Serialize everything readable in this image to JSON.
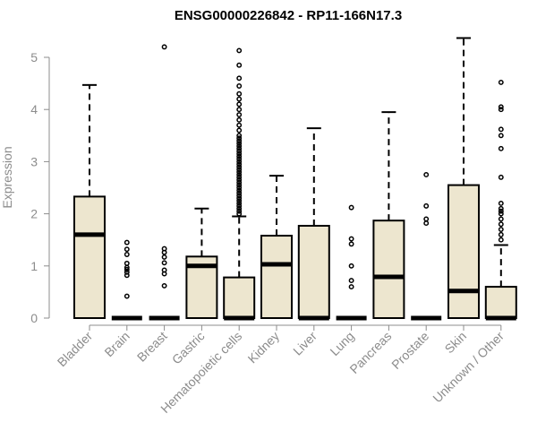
{
  "chart_data": {
    "type": "box",
    "title": "ENSG00000226842 - RP11-166N17.3",
    "ylabel": "Expression",
    "xlabel": "",
    "ylim": [
      0,
      5.5
    ],
    "yticks": [
      0,
      1,
      2,
      3,
      4,
      5
    ],
    "grid": false,
    "box_fill": "#ede6cf",
    "outline_color": "#000000",
    "categories": [
      "Bladder",
      "Brain",
      "Breast",
      "Gastric",
      "Hematopoietic cells",
      "Kidney",
      "Liver",
      "Lung",
      "Pancreas",
      "Prostate",
      "Skin",
      "Unknown / Other"
    ],
    "boxes": [
      {
        "q1": 0,
        "median": 1.6,
        "q3": 2.33,
        "whisker_low": 0,
        "whisker_high": 4.47,
        "outliers": []
      },
      {
        "q1": 0,
        "median": 0,
        "q3": 0,
        "whisker_low": 0,
        "whisker_high": 0,
        "outliers": [
          0.42,
          0.82,
          0.88,
          0.93,
          0.97,
          1.05,
          1.22,
          1.32,
          1.45
        ]
      },
      {
        "q1": 0,
        "median": 0,
        "q3": 0,
        "whisker_low": 0,
        "whisker_high": 0,
        "outliers": [
          0.62,
          0.85,
          0.92,
          1.06,
          1.17,
          1.26,
          1.33,
          5.2
        ]
      },
      {
        "q1": 0,
        "median": 1.0,
        "q3": 1.18,
        "whisker_low": 0,
        "whisker_high": 2.1,
        "outliers": []
      },
      {
        "q1": 0,
        "median": 0,
        "q3": 0.78,
        "whisker_low": 0,
        "whisker_high": 1.95,
        "outliers": [
          2.0,
          2.05,
          2.1,
          2.15,
          2.2,
          2.25,
          2.3,
          2.35,
          2.4,
          2.45,
          2.5,
          2.55,
          2.6,
          2.65,
          2.7,
          2.75,
          2.8,
          2.85,
          2.9,
          2.95,
          3.0,
          3.05,
          3.1,
          3.15,
          3.2,
          3.25,
          3.3,
          3.35,
          3.4,
          3.45,
          3.5,
          3.6,
          3.7,
          3.8,
          3.9,
          4.0,
          4.1,
          4.2,
          4.3,
          4.45,
          4.6,
          4.85,
          5.13
        ]
      },
      {
        "q1": 0,
        "median": 1.03,
        "q3": 1.58,
        "whisker_low": 0,
        "whisker_high": 2.73,
        "outliers": []
      },
      {
        "q1": 0,
        "median": 0,
        "q3": 1.77,
        "whisker_low": 0,
        "whisker_high": 3.64,
        "outliers": []
      },
      {
        "q1": 0,
        "median": 0,
        "q3": 0,
        "whisker_low": 0,
        "whisker_high": 0,
        "outliers": [
          0.6,
          0.72,
          1.0,
          1.42,
          1.52,
          2.12
        ]
      },
      {
        "q1": 0,
        "median": 0.79,
        "q3": 1.87,
        "whisker_low": 0,
        "whisker_high": 3.95,
        "outliers": []
      },
      {
        "q1": 0,
        "median": 0,
        "q3": 0,
        "whisker_low": 0,
        "whisker_high": 0,
        "outliers": [
          1.82,
          1.9,
          2.15,
          2.75
        ]
      },
      {
        "q1": 0,
        "median": 0.52,
        "q3": 2.55,
        "whisker_low": 0,
        "whisker_high": 5.37,
        "outliers": []
      },
      {
        "q1": 0,
        "median": 0,
        "q3": 0.6,
        "whisker_low": 0,
        "whisker_high": 1.4,
        "outliers": [
          1.5,
          1.6,
          1.7,
          1.8,
          1.9,
          2.0,
          2.05,
          2.1,
          2.2,
          2.7,
          3.25,
          3.5,
          3.62,
          4.0,
          4.05,
          4.52
        ]
      }
    ]
  }
}
